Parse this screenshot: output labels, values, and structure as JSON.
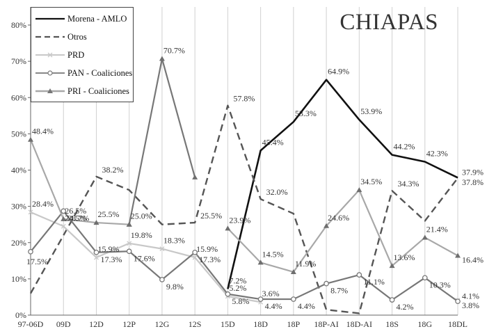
{
  "chart_data": {
    "type": "line",
    "title": "CHIAPAS",
    "xlabel": "",
    "ylabel": "",
    "ylim": [
      0,
      80
    ],
    "yticks": [
      "0%",
      "10%",
      "20%",
      "30%",
      "40%",
      "50%",
      "60%",
      "70%",
      "80%"
    ],
    "categories": [
      "97-06D",
      "09D",
      "12D",
      "12P",
      "12G",
      "12S",
      "15D",
      "18D",
      "18P",
      "18P-AI",
      "18D-AI",
      "18S",
      "18G",
      "18DL"
    ],
    "grid": "vertical",
    "legend_position": "top-left",
    "series": [
      {
        "name": "Morena - AMLO",
        "color": "#111111",
        "style": "solid",
        "marker": "none",
        "values": [
          null,
          null,
          null,
          null,
          null,
          null,
          7.2,
          45.4,
          53.3,
          64.9,
          53.9,
          44.2,
          42.3,
          37.9
        ],
        "labels": [
          null,
          null,
          null,
          null,
          null,
          null,
          "7.2%",
          "45.4%",
          "53.3%",
          "64.9%",
          "53.9%",
          "44.2%",
          "42.3%",
          "37.9%"
        ]
      },
      {
        "name": "Otros",
        "color": "#555555",
        "style": "dashed",
        "marker": "none",
        "values": [
          6.0,
          22.0,
          38.2,
          34.5,
          25.0,
          25.5,
          57.8,
          32.0,
          28.0,
          1.5,
          0.5,
          34.3,
          26.0,
          37.8
        ],
        "labels": [
          null,
          null,
          "38.2%",
          null,
          null,
          "25.5%",
          "57.8%",
          "32.0%",
          null,
          null,
          null,
          "34.3%",
          null,
          "37.8%"
        ]
      },
      {
        "name": "PRD",
        "color": "#c8c8c8",
        "style": "solid",
        "marker": "x",
        "values": [
          28.4,
          24.5,
          15.9,
          19.8,
          18.3,
          15.9,
          5.2,
          3.6,
          null,
          null,
          null,
          null,
          null,
          4.1
        ],
        "labels": [
          "28.4%",
          "24.5%",
          "15.9%",
          "19.8%",
          "18.3%",
          "15.9%",
          "5.2%",
          "3.6%",
          null,
          null,
          null,
          null,
          null,
          "4.1%"
        ]
      },
      {
        "name": "PAN - Coaliciones",
        "color": "#777777",
        "style": "solid",
        "marker": "circle",
        "values": [
          17.5,
          28.7,
          17.3,
          17.6,
          9.8,
          17.3,
          5.8,
          4.4,
          4.4,
          8.7,
          11.1,
          4.2,
          10.3,
          3.8
        ],
        "labels": [
          "17.5%",
          "28.7%",
          "17.3%",
          "17.6%",
          "9.8%",
          "17.3%",
          "5.8%",
          "4.4%",
          "4.4%",
          "8.7%",
          "11.1%",
          "4.2%",
          "10.3%",
          "3.8%"
        ]
      },
      {
        "name": "PRI - Coaliciones",
        "color": "#a8a8a8",
        "style": "solid",
        "marker": "triangle",
        "values": [
          48.4,
          26.5,
          25.5,
          25.0,
          null,
          null,
          23.9,
          14.5,
          11.9,
          24.6,
          34.5,
          13.6,
          21.4,
          16.4
        ],
        "labels": [
          "48.4%",
          "26.5%",
          "25.5%",
          "25.0%",
          null,
          null,
          "23.9%",
          "14.5%",
          "11.9%",
          "24.6%",
          "34.5%",
          "13.6%",
          "21.4%",
          "16.4%"
        ]
      },
      {
        "name": "",
        "color": "#777777",
        "style": "solid",
        "marker": "triangle",
        "values": [
          null,
          null,
          null,
          25.0,
          70.7,
          38.0,
          null,
          null,
          null,
          null,
          null,
          null,
          null,
          null
        ],
        "labels": [
          null,
          null,
          null,
          null,
          "70.7%",
          null,
          null,
          null,
          null,
          null,
          null,
          null,
          null,
          null
        ]
      }
    ]
  }
}
